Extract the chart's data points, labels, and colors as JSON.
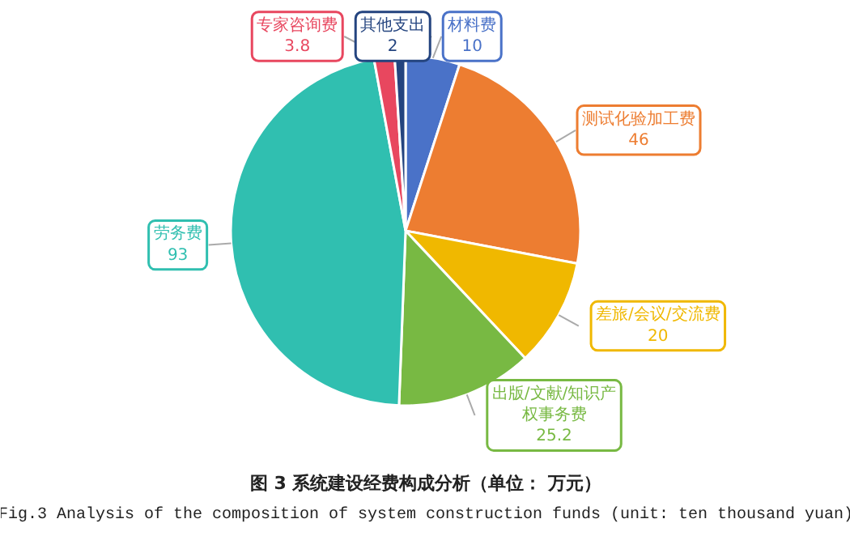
{
  "chart_data": {
    "type": "pie",
    "title": "图 3 系统建设经费构成分析（单位： 万元）",
    "subtitle": "Fig.3 Analysis of the composition of system construction funds (unit: ten thousand yuan)",
    "categories": [
      "材料费",
      "测试化验加工费",
      "差旅/会议/交流费",
      "出版/文献/知识产权事务费",
      "劳务费",
      "专家咨询费",
      "其他支出"
    ],
    "values": [
      10,
      46,
      20,
      25.2,
      93,
      3.8,
      2
    ],
    "colors": [
      "#4a72c8",
      "#ed7d31",
      "#f0b800",
      "#78b943",
      "#30bfb0",
      "#e8475f",
      "#24447f"
    ],
    "data_labels": true
  }
}
